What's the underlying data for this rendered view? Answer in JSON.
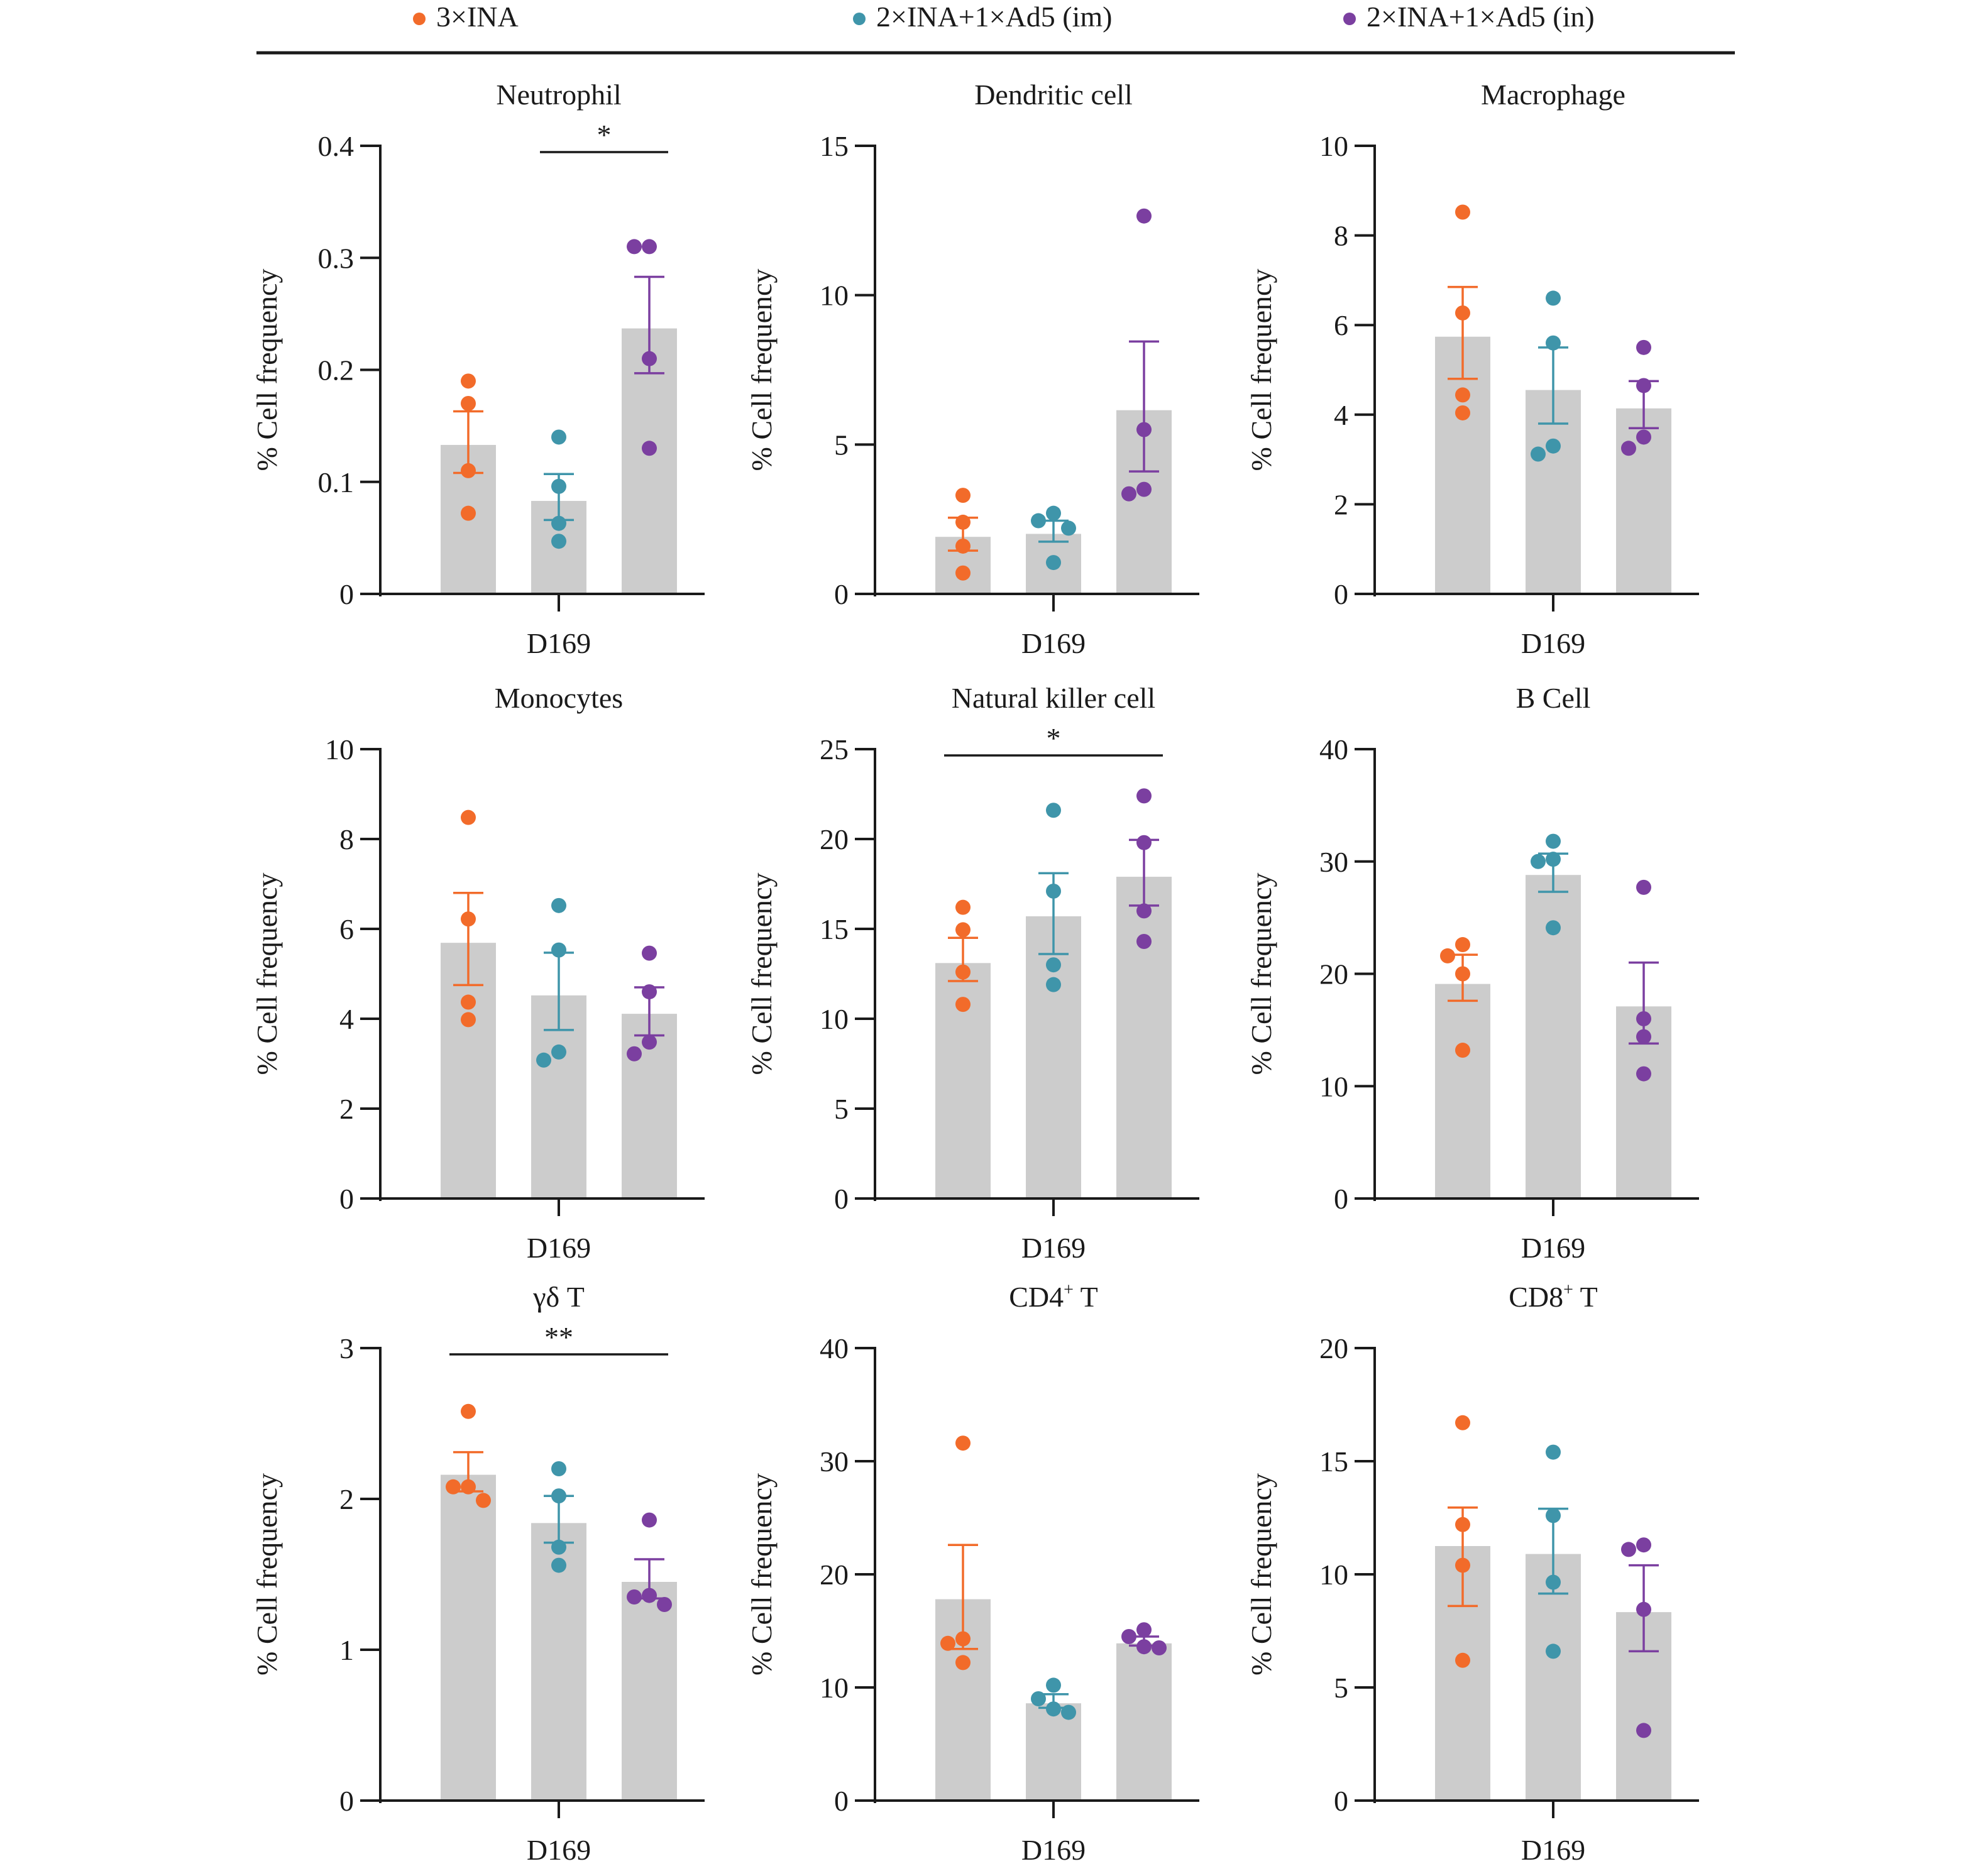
{
  "legend": [
    {
      "label": "3×INA",
      "color": "#F26B2A"
    },
    {
      "label": "2×INA+1×Ad5 (im)",
      "color": "#3F95AA"
    },
    {
      "label": "2×INA+1×Ad5 (in)",
      "color": "#7B3FA0"
    }
  ],
  "colors": {
    "bar": "#CCCCCC",
    "axis": "#1A1A1A"
  },
  "chart_data": [
    {
      "type": "bar",
      "title": "Neutrophil",
      "title_sup": "",
      "title_suffix": "",
      "xlabel": "D169",
      "ylabel": "% Cell frequency",
      "ylim": [
        0,
        0.4
      ],
      "yticks": [
        0,
        0.1,
        0.2,
        0.3,
        0.4
      ],
      "ytick_labels": [
        "0",
        "0.1",
        "0.2",
        "0.3",
        "0.4"
      ],
      "series": [
        {
          "name": "3×INA",
          "mean": 0.133,
          "sem_low": 0.108,
          "sem_high": 0.163,
          "points": [
            0.19,
            0.17,
            0.11,
            0.072
          ]
        },
        {
          "name": "2×INA+1×Ad5 (im)",
          "mean": 0.083,
          "sem_low": 0.066,
          "sem_high": 0.107,
          "points": [
            0.14,
            0.096,
            0.063,
            0.047
          ]
        },
        {
          "name": "2×INA+1×Ad5 (in)",
          "mean": 0.237,
          "sem_low": 0.197,
          "sem_high": 0.283,
          "points": [
            0.31,
            0.31,
            0.21,
            0.13
          ]
        }
      ],
      "significance": [
        {
          "from": 1,
          "to": 2,
          "label": "*"
        }
      ]
    },
    {
      "type": "bar",
      "title": "Dendritic cell",
      "title_sup": "",
      "title_suffix": "",
      "xlabel": "D169",
      "ylabel": "% Cell frequency",
      "ylim": [
        0,
        15
      ],
      "yticks": [
        0,
        5,
        10,
        15
      ],
      "ytick_labels": [
        "0",
        "5",
        "10",
        "15"
      ],
      "series": [
        {
          "name": "3×INA",
          "mean": 1.91,
          "sem_low": 1.45,
          "sem_high": 2.55,
          "points": [
            3.3,
            2.4,
            1.6,
            0.7
          ]
        },
        {
          "name": "2×INA+1×Ad5 (im)",
          "mean": 2.01,
          "sem_low": 1.75,
          "sem_high": 2.45,
          "points": [
            2.7,
            2.45,
            2.2,
            1.05
          ]
        },
        {
          "name": "2×INA+1×Ad5 (in)",
          "mean": 6.15,
          "sem_low": 4.1,
          "sem_high": 8.45,
          "points": [
            12.65,
            5.5,
            3.5,
            3.35
          ]
        }
      ],
      "significance": []
    },
    {
      "type": "bar",
      "title": "Macrophage",
      "title_sup": "",
      "title_suffix": "",
      "xlabel": "D169",
      "ylabel": "% Cell frequency",
      "ylim": [
        0,
        10
      ],
      "yticks": [
        0,
        2,
        4,
        6,
        8,
        10
      ],
      "ytick_labels": [
        "0",
        "2",
        "4",
        "6",
        "8",
        "10"
      ],
      "series": [
        {
          "name": "3×INA",
          "mean": 5.74,
          "sem_low": 4.8,
          "sem_high": 6.85,
          "points": [
            8.52,
            6.27,
            4.44,
            4.04
          ]
        },
        {
          "name": "2×INA+1×Ad5 (im)",
          "mean": 4.55,
          "sem_low": 3.8,
          "sem_high": 5.5,
          "points": [
            6.6,
            5.6,
            3.3,
            3.12
          ]
        },
        {
          "name": "2×INA+1×Ad5 (in)",
          "mean": 4.14,
          "sem_low": 3.7,
          "sem_high": 4.75,
          "points": [
            5.5,
            4.65,
            3.5,
            3.25
          ]
        }
      ],
      "significance": []
    },
    {
      "type": "bar",
      "title": "Monocytes",
      "title_sup": "",
      "title_suffix": "",
      "xlabel": "D169",
      "ylabel": "% Cell frequency",
      "ylim": [
        0,
        10
      ],
      "yticks": [
        0,
        2,
        4,
        6,
        8,
        10
      ],
      "ytick_labels": [
        "0",
        "2",
        "4",
        "6",
        "8",
        "10"
      ],
      "series": [
        {
          "name": "3×INA",
          "mean": 5.69,
          "sem_low": 4.75,
          "sem_high": 6.8,
          "points": [
            8.48,
            6.22,
            4.37,
            3.98
          ]
        },
        {
          "name": "2×INA+1×Ad5 (im)",
          "mean": 4.52,
          "sem_low": 3.75,
          "sem_high": 5.47,
          "points": [
            6.52,
            5.53,
            3.26,
            3.08
          ]
        },
        {
          "name": "2×INA+1×Ad5 (in)",
          "mean": 4.11,
          "sem_low": 3.63,
          "sem_high": 4.7,
          "points": [
            5.46,
            4.6,
            3.48,
            3.22
          ]
        }
      ],
      "significance": []
    },
    {
      "type": "bar",
      "title": "Natural killer cell",
      "title_sup": "",
      "title_suffix": "",
      "xlabel": "D169",
      "ylabel": "% Cell frequency",
      "ylim": [
        0,
        25
      ],
      "yticks": [
        0,
        5,
        10,
        15,
        20,
        25
      ],
      "ytick_labels": [
        "0",
        "5",
        "10",
        "15",
        "20",
        "25"
      ],
      "series": [
        {
          "name": "3×INA",
          "mean": 13.1,
          "sem_low": 12.1,
          "sem_high": 14.5,
          "points": [
            16.2,
            14.95,
            12.6,
            10.8
          ]
        },
        {
          "name": "2×INA+1×Ad5 (im)",
          "mean": 15.7,
          "sem_low": 13.6,
          "sem_high": 18.1,
          "points": [
            21.6,
            17.1,
            13.0,
            11.9
          ]
        },
        {
          "name": "2×INA+1×Ad5 (in)",
          "mean": 17.9,
          "sem_low": 16.3,
          "sem_high": 19.95,
          "points": [
            22.4,
            19.8,
            16.0,
            14.3
          ]
        }
      ],
      "significance": [
        {
          "from": 0,
          "to": 2,
          "label": "*"
        }
      ]
    },
    {
      "type": "bar",
      "title": "B Cell",
      "title_sup": "",
      "title_suffix": "",
      "xlabel": "D169",
      "ylabel": "% Cell frequency",
      "ylim": [
        0,
        40
      ],
      "yticks": [
        0,
        10,
        20,
        30,
        40
      ],
      "ytick_labels": [
        "0",
        "10",
        "20",
        "30",
        "40"
      ],
      "series": [
        {
          "name": "3×INA",
          "mean": 19.1,
          "sem_low": 17.6,
          "sem_high": 21.7,
          "points": [
            22.6,
            21.6,
            20.0,
            13.2
          ]
        },
        {
          "name": "2×INA+1×Ad5 (im)",
          "mean": 28.8,
          "sem_low": 27.3,
          "sem_high": 30.7,
          "points": [
            31.8,
            30.2,
            30.0,
            24.1
          ]
        },
        {
          "name": "2×INA+1×Ad5 (in)",
          "mean": 17.1,
          "sem_low": 13.8,
          "sem_high": 21.0,
          "points": [
            27.7,
            16.0,
            14.4,
            11.1
          ]
        }
      ],
      "significance": []
    },
    {
      "type": "bar",
      "title": "γδ T",
      "title_sup": "",
      "title_suffix": "",
      "xlabel": "D169",
      "ylabel": "% Cell frequency",
      "ylim": [
        0,
        3
      ],
      "yticks": [
        0,
        1,
        2,
        3
      ],
      "ytick_labels": [
        "0",
        "1",
        "2",
        "3"
      ],
      "series": [
        {
          "name": "3×INA",
          "mean": 2.16,
          "sem_low": 2.05,
          "sem_high": 2.31,
          "points": [
            2.58,
            2.08,
            2.08,
            1.99
          ]
        },
        {
          "name": "2×INA+1×Ad5 (im)",
          "mean": 1.84,
          "sem_low": 1.71,
          "sem_high": 2.02,
          "points": [
            2.2,
            2.02,
            1.68,
            1.56
          ]
        },
        {
          "name": "2×INA+1×Ad5 (in)",
          "mean": 1.45,
          "sem_low": 1.34,
          "sem_high": 1.6,
          "points": [
            1.86,
            1.36,
            1.35,
            1.3
          ]
        }
      ],
      "significance": [
        {
          "from": 0,
          "to": 2,
          "label": "**"
        }
      ]
    },
    {
      "type": "bar",
      "title": "CD4",
      "title_sup": "+",
      "title_suffix": " T",
      "xlabel": "D169",
      "ylabel": "% Cell frequency",
      "ylim": [
        0,
        40
      ],
      "yticks": [
        0,
        10,
        20,
        30,
        40
      ],
      "ytick_labels": [
        "0",
        "10",
        "20",
        "30",
        "40"
      ],
      "series": [
        {
          "name": "3×INA",
          "mean": 17.8,
          "sem_low": 13.4,
          "sem_high": 22.6,
          "points": [
            31.6,
            14.3,
            13.9,
            12.2
          ]
        },
        {
          "name": "2×INA+1×Ad5 (im)",
          "mean": 8.6,
          "sem_low": 8.2,
          "sem_high": 9.4,
          "points": [
            10.2,
            9.0,
            8.1,
            7.8
          ]
        },
        {
          "name": "2×INA+1×Ad5 (in)",
          "mean": 13.9,
          "sem_low": 13.7,
          "sem_high": 14.5,
          "points": [
            15.1,
            14.5,
            13.6,
            13.5
          ]
        }
      ],
      "significance": []
    },
    {
      "type": "bar",
      "title": "CD8",
      "title_sup": "+",
      "title_suffix": " T",
      "xlabel": "D169",
      "ylabel": "% Cell frequency",
      "ylim": [
        0,
        20
      ],
      "yticks": [
        0,
        5,
        10,
        15,
        20
      ],
      "ytick_labels": [
        "0",
        "5",
        "10",
        "15",
        "20"
      ],
      "series": [
        {
          "name": "3×INA",
          "mean": 11.25,
          "sem_low": 8.6,
          "sem_high": 12.95,
          "points": [
            16.7,
            12.2,
            10.4,
            6.2
          ]
        },
        {
          "name": "2×INA+1×Ad5 (im)",
          "mean": 10.9,
          "sem_low": 9.15,
          "sem_high": 12.9,
          "points": [
            15.4,
            12.6,
            9.65,
            6.6
          ]
        },
        {
          "name": "2×INA+1×Ad5 (in)",
          "mean": 8.33,
          "sem_low": 6.6,
          "sem_high": 10.4,
          "points": [
            11.3,
            11.1,
            8.45,
            3.1
          ]
        }
      ],
      "significance": []
    }
  ]
}
